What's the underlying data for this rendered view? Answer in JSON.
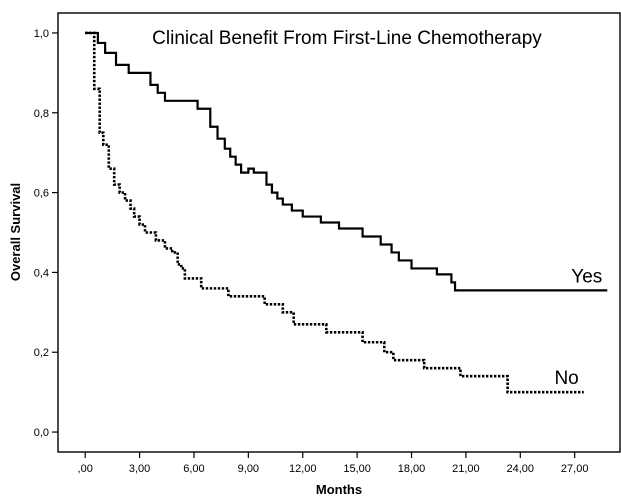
{
  "chart_data": {
    "type": "line",
    "title": "Clinical Benefit From First-Line Chemotherapy",
    "xlabel": "Months",
    "ylabel": "Overall Survival",
    "xlim": [
      -1.5,
      29.5
    ],
    "ylim": [
      -0.05,
      1.05
    ],
    "x_ticks": [
      0,
      3,
      6,
      9,
      12,
      15,
      18,
      21,
      24,
      27
    ],
    "x_tick_labels": [
      ",00",
      "3,00",
      "6,00",
      "9,00",
      "12,00",
      "15,00",
      "18,00",
      "21,00",
      "24,00",
      "27,00"
    ],
    "y_ticks": [
      0,
      0.2,
      0.4,
      0.6,
      0.8,
      1.0
    ],
    "y_tick_labels": [
      "0,0",
      "0,2",
      "0,4",
      "0,6",
      "0,8",
      "1,0"
    ],
    "grid": false,
    "legend": "none",
    "step": true,
    "series": [
      {
        "name": "Yes",
        "line_style": "solid",
        "x": [
          0,
          0.7,
          1.1,
          1.7,
          2.4,
          3.6,
          4.0,
          4.4,
          6.2,
          6.9,
          7.3,
          7.7,
          8.0,
          8.3,
          8.6,
          9.0,
          9.3,
          10.0,
          10.3,
          10.6,
          10.9,
          11.4,
          12.0,
          13.0,
          14.0,
          15.3,
          16.3,
          16.9,
          17.3,
          18.0,
          19.4,
          20.2,
          20.4,
          28.8
        ],
        "y": [
          1.0,
          0.975,
          0.95,
          0.92,
          0.9,
          0.87,
          0.85,
          0.83,
          0.81,
          0.765,
          0.735,
          0.71,
          0.69,
          0.67,
          0.65,
          0.66,
          0.65,
          0.62,
          0.6,
          0.585,
          0.57,
          0.555,
          0.54,
          0.525,
          0.51,
          0.49,
          0.47,
          0.45,
          0.43,
          0.41,
          0.395,
          0.375,
          0.355,
          0.355
        ]
      },
      {
        "name": "No",
        "line_style": "dotted",
        "x": [
          0,
          0.5,
          0.8,
          1.0,
          1.3,
          1.6,
          1.9,
          2.2,
          2.5,
          2.7,
          3.0,
          3.3,
          3.6,
          3.9,
          4.4,
          4.8,
          5.1,
          5.3,
          5.5,
          6.4,
          7.9,
          9.9,
          10.9,
          11.5,
          12.0,
          13.3,
          14.2,
          15.3,
          16.5,
          17.0,
          17.6,
          18.7,
          20.7,
          23.3,
          27.5
        ],
        "y": [
          1.0,
          0.86,
          0.75,
          0.72,
          0.66,
          0.62,
          0.6,
          0.58,
          0.56,
          0.54,
          0.52,
          0.5,
          0.5,
          0.48,
          0.46,
          0.45,
          0.42,
          0.41,
          0.385,
          0.36,
          0.34,
          0.32,
          0.3,
          0.27,
          0.27,
          0.25,
          0.25,
          0.225,
          0.2,
          0.18,
          0.18,
          0.16,
          0.14,
          0.1,
          0.1
        ]
      }
    ]
  }
}
